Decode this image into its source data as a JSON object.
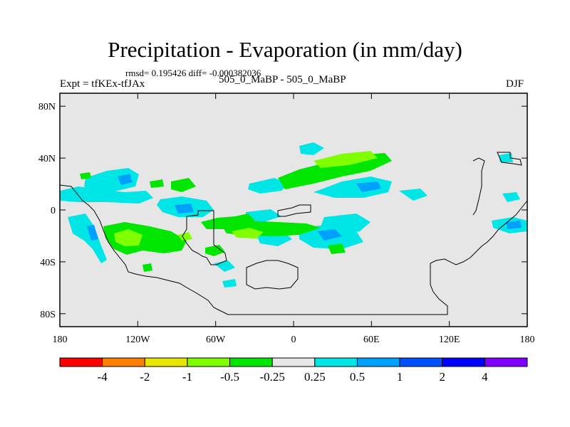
{
  "title": "Precipitation - Evaporation (in mm/day)",
  "stats": "rmsd= 0.195426 diff= -0.000382036",
  "left_label": "Expt = tfKEx-tfJAx",
  "center_label": "505_0_MaBP - 505_0_MaBP",
  "right_label": "DJF",
  "map": {
    "projection": "cylindrical-equidistant",
    "lon_range": [
      -180,
      180
    ],
    "lat_range": [
      -90,
      90
    ],
    "background_color": "#e6e6e6",
    "x_ticks": [
      {
        "lon": -180,
        "label": "180"
      },
      {
        "lon": -120,
        "label": "120W"
      },
      {
        "lon": -60,
        "label": "60W"
      },
      {
        "lon": 0,
        "label": "0"
      },
      {
        "lon": 60,
        "label": "60E"
      },
      {
        "lon": 120,
        "label": "120E"
      },
      {
        "lon": 180,
        "label": "180"
      }
    ],
    "y_ticks": [
      {
        "lat": 80,
        "label": "80N"
      },
      {
        "lat": 40,
        "label": "40N"
      },
      {
        "lat": 0,
        "label": "0"
      },
      {
        "lat": -40,
        "label": "40S"
      },
      {
        "lat": -80,
        "label": "80S"
      }
    ]
  },
  "colorbar": {
    "colors": [
      "#ff0000",
      "#ff8000",
      "#e6e600",
      "#80ff00",
      "#00e600",
      "#e6e6e6",
      "#00e6e6",
      "#00a0ff",
      "#0050ff",
      "#0000ff",
      "#8000ff"
    ],
    "levels": [
      "-4",
      "-2",
      "-1",
      "-0.5",
      "-0.25",
      "0.25",
      "0.5",
      "1",
      "2",
      "4"
    ]
  }
}
